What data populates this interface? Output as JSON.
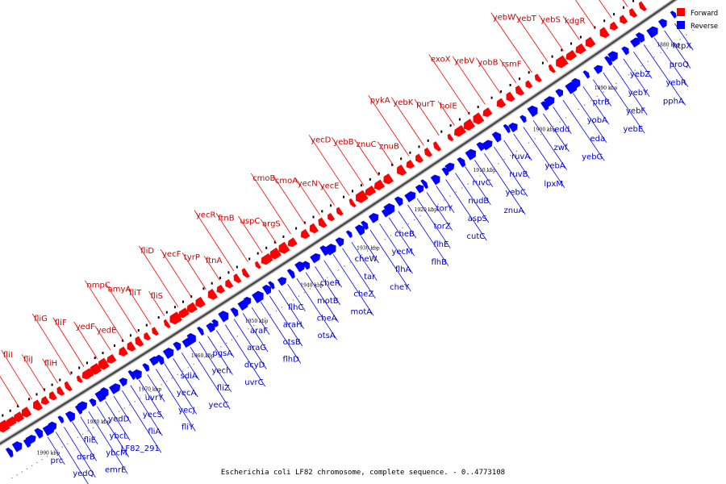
{
  "caption": "Escherichia coli LF82 chromosome, complete sequence. - 0..4773108",
  "legend": [
    {
      "label": "Forward",
      "color": "#ff0000"
    },
    {
      "label": "Reverse",
      "color": "#0000ff"
    }
  ],
  "colors": {
    "forward": "#ff0000",
    "reverse": "#0000ff",
    "forward_label": "#cc0000",
    "reverse_label": "#0000cc",
    "backbone": "#444444"
  },
  "scale_ticks": [
    "1880 kbp",
    "1890 kbp",
    "1900 kbp",
    "1910 kbp",
    "1920 kbp",
    "1930 kbp",
    "1940 kbp",
    "1950 kbp",
    "1960 kbp",
    "1970 kbp",
    "1980 kbp",
    "1990 kbp"
  ],
  "reverse_genes": [
    "htpX",
    "proQ",
    "yebR",
    "pphA",
    "yebZ",
    "yebY",
    "yebF",
    "yebE",
    "ptrB",
    "yobA",
    "eda",
    "yebG",
    "edd",
    "zwf",
    "yebA",
    "lpxM",
    "ruvA",
    "ruvB",
    "yebC",
    "znuA",
    "ruvC",
    "nudB",
    "aspS",
    "cutC",
    "torY",
    "torZ",
    "flhE",
    "flhB",
    "cheB",
    "yecM",
    "flhA",
    "cheY",
    "cheW",
    "tar",
    "cheZ",
    "motA",
    "cheR",
    "motB",
    "cheA",
    "otsA",
    "flhC",
    "araH",
    "otsB",
    "flhD",
    "araF",
    "araG",
    "dcyD",
    "uvrC",
    "pgsA",
    "yech",
    "fliZ",
    "yecC",
    "sdiA",
    "yecA",
    "yecJ",
    "fliY",
    "uvrY",
    "yecS",
    "fliA",
    "LF82_291",
    "yedD",
    "ybcL",
    "ybcM",
    "emrE",
    "fliE",
    "dsrB",
    "yedQ",
    "LF82_773",
    "prc"
  ],
  "forward_genes": [
    "yobD",
    "yebN",
    "cspC",
    "yebO",
    "kdgR",
    "yebS",
    "yebT",
    "yebW",
    "rsmF",
    "yobB",
    "yebV",
    "exoX",
    "holE",
    "purT",
    "yebK",
    "pykA",
    "znuB",
    "znuC",
    "yebB",
    "yecD",
    "yecE",
    "yecN",
    "cmoA",
    "cmoB",
    "argS",
    "uspC",
    "ftnB",
    "yecR",
    "ftnA",
    "tyrP",
    "yecF",
    "fliD",
    "fliS",
    "fliT",
    "amyA",
    "nmpC",
    "yedE",
    "yedF",
    "fliF",
    "fliG",
    "fliH",
    "fliJ",
    "fliI",
    "fliL"
  ]
}
